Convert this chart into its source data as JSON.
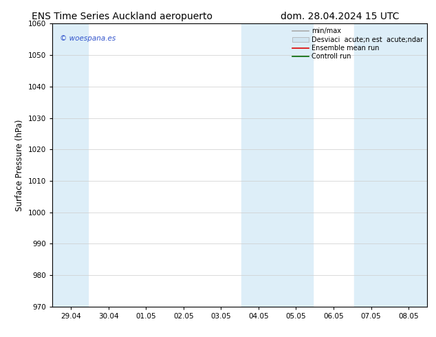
{
  "title_left": "ENS Time Series Auckland aeropuerto",
  "title_right": "dom. 28.04.2024 15 UTC",
  "ylabel": "Surface Pressure (hPa)",
  "ylim": [
    970,
    1060
  ],
  "yticks": [
    970,
    980,
    990,
    1000,
    1010,
    1020,
    1030,
    1040,
    1050,
    1060
  ],
  "xtick_labels": [
    "29.04",
    "30.04",
    "01.05",
    "02.05",
    "03.05",
    "04.05",
    "05.05",
    "06.05",
    "07.05",
    "08.05"
  ],
  "watermark": "© woespana.es",
  "watermark_color": "#3355cc",
  "band_color": "#ddeef8",
  "bg_color": "#ffffff",
  "axes_bg": "#ffffff",
  "grid_color": "#cccccc",
  "title_fontsize": 10,
  "tick_fontsize": 7.5,
  "ylabel_fontsize": 8.5,
  "legend_fontsize": 7
}
